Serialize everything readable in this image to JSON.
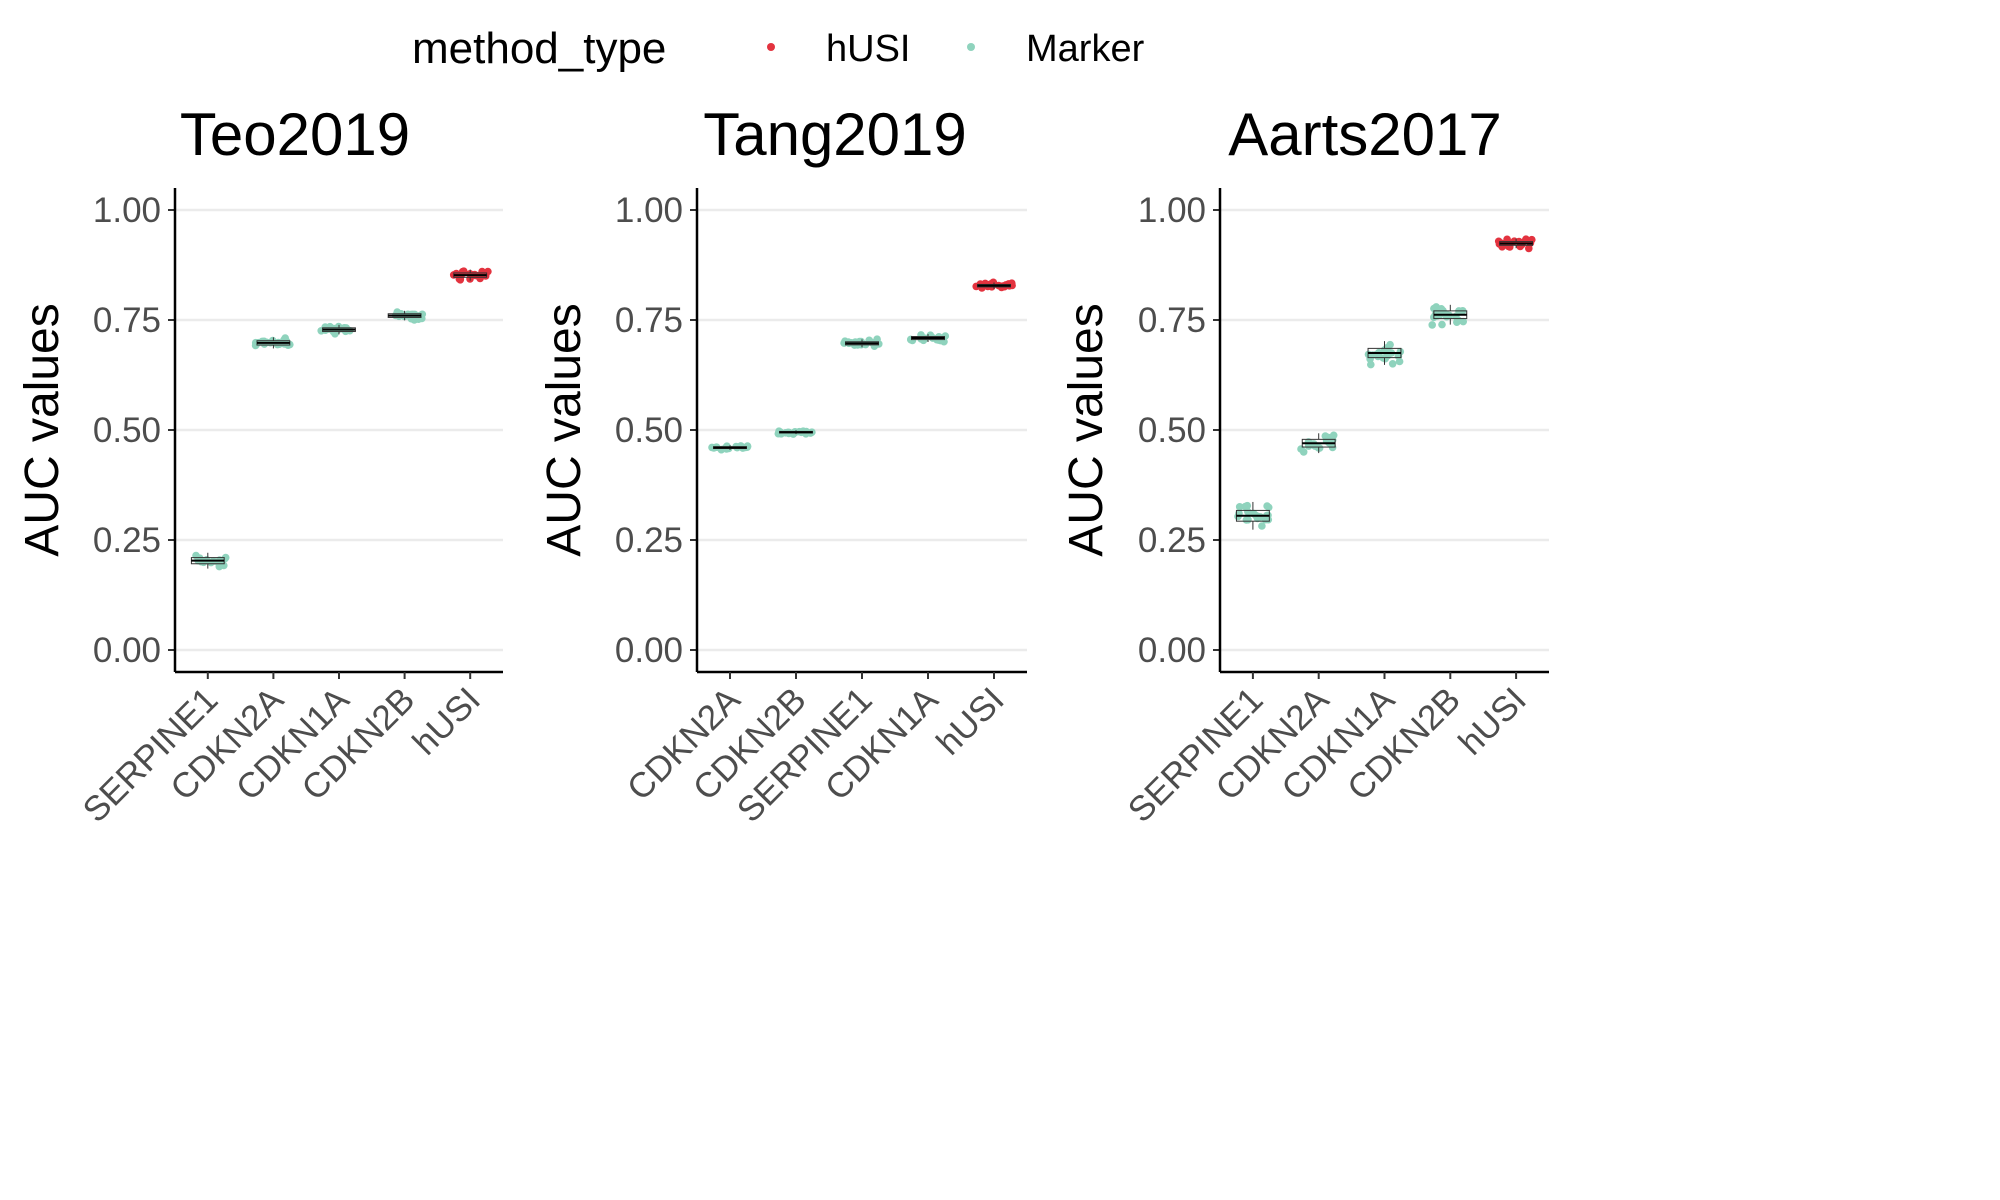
{
  "legend": {
    "title": "method_type",
    "items": [
      {
        "label": "hUSI",
        "color": "#E3333F"
      },
      {
        "label": "Marker",
        "color": "#8FD3BD"
      }
    ]
  },
  "chart_data": [
    {
      "type": "box+jitter",
      "title": "Teo2019",
      "ylabel": "AUC values",
      "ylim": [
        -0.05,
        1.05
      ],
      "yticks": [
        "0.00",
        "0.25",
        "0.50",
        "0.75",
        "1.00"
      ],
      "grid": "horizontal",
      "categories": [
        "SERPINE1",
        "CDKN2A",
        "CDKN1A",
        "CDKN2B",
        "hUSI"
      ],
      "method_type": [
        "Marker",
        "Marker",
        "Marker",
        "Marker",
        "hUSI"
      ],
      "median": [
        0.203,
        0.698,
        0.728,
        0.76,
        0.852
      ],
      "spread": [
        0.02,
        0.014,
        0.012,
        0.012,
        0.014
      ]
    },
    {
      "type": "box+jitter",
      "title": "Tang2019",
      "ylabel": "AUC values",
      "ylim": [
        -0.05,
        1.05
      ],
      "yticks": [
        "0.00",
        "0.25",
        "0.50",
        "0.75",
        "1.00"
      ],
      "grid": "horizontal",
      "categories": [
        "CDKN2A",
        "CDKN2B",
        "SERPINE1",
        "CDKN1A",
        "hUSI"
      ],
      "method_type": [
        "Marker",
        "Marker",
        "Marker",
        "Marker",
        "hUSI"
      ],
      "median": [
        0.46,
        0.495,
        0.697,
        0.709,
        0.828
      ],
      "spread": [
        0.006,
        0.005,
        0.01,
        0.01,
        0.008
      ]
    },
    {
      "type": "box+jitter",
      "title": "Aarts2017",
      "ylabel": "AUC values",
      "ylim": [
        -0.05,
        1.05
      ],
      "yticks": [
        "0.00",
        "0.25",
        "0.50",
        "0.75",
        "1.00"
      ],
      "grid": "horizontal",
      "categories": [
        "SERPINE1",
        "CDKN2A",
        "CDKN1A",
        "CDKN2B",
        "hUSI"
      ],
      "method_type": [
        "Marker",
        "Marker",
        "Marker",
        "Marker",
        "hUSI"
      ],
      "median": [
        0.305,
        0.47,
        0.675,
        0.762,
        0.924
      ],
      "spread": [
        0.035,
        0.025,
        0.03,
        0.025,
        0.012
      ]
    }
  ]
}
